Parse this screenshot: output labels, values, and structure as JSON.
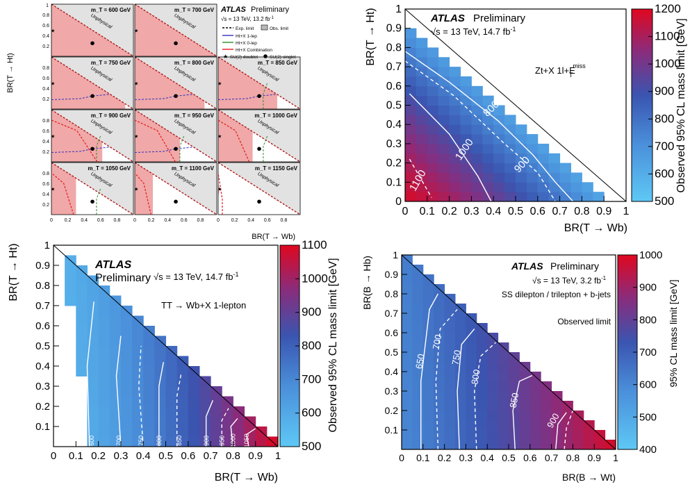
{
  "colors": {
    "atlas_low": "#5ec8f5",
    "atlas_mid": "#2f5db3",
    "atlas_high": "#e0071f",
    "excluded_red": "#f0a8a8",
    "unphysical_gray": "#e2e2e2",
    "combination_red": "#e31a1c",
    "zero_lep_green": "#2e8b2e",
    "one_lep_blue": "#3030c0",
    "exp_dashed": "#000000"
  },
  "chart_data": [
    {
      "id": "panel_a",
      "type": "heatmap",
      "description_type": "grid of exclusion contour mini-plots",
      "label_atlas": "ATLAS",
      "label_prelim": "Preliminary",
      "label_energy": "√s = 13 TeV, 13.2 fb",
      "label_energy_sup": "-1",
      "xlabel": "BR(T → Wb)",
      "ylabel": "BR(T → Ht)",
      "xticks": [
        "0",
        "0.2",
        "0.4",
        "0.6",
        "0.8"
      ],
      "yticks": [
        "0.2",
        "0.4",
        "0.6",
        "0.8"
      ],
      "y_top_tick": "1",
      "unphysical_label": "Unphysical",
      "legend": {
        "exp": "Exp. limit",
        "obs": "Obs. limit",
        "one_lep": "Ht+X 1-lep",
        "zero_lep": "Ht+X 0-lep",
        "combo": "Ht+X Combination",
        "doublet": "SU(2) doublet",
        "singlet": "SU(2) singlet"
      },
      "masses": [
        "m_T = 600 GeV",
        "m_T = 700 GeV",
        "",
        "m_T = 750 GeV",
        "m_T = 800 GeV",
        "m_T = 850 GeV",
        "m_T = 900 GeV",
        "m_T = 950 GeV",
        "m_T = 1000 GeV",
        "m_T = 1050 GeV",
        "m_T = 1100 GeV",
        "m_T = 1150 GeV"
      ],
      "excluded_extent": [
        1.0,
        1.0,
        null,
        0.9,
        0.85,
        0.72,
        0.62,
        0.55,
        0.42,
        0.3,
        0.22,
        0.0
      ],
      "singlet_point": [
        0.5,
        0.25
      ],
      "doublet_point": [
        0.0,
        0.5
      ]
    },
    {
      "id": "panel_b",
      "type": "heatmap",
      "label_atlas": "ATLAS",
      "label_prelim": "Preliminary",
      "label_energy": "√s = 13 TeV, 14.7 fb",
      "label_energy_sup": "-1",
      "channel": "Zt+X 1l+E",
      "channel_sub": "T",
      "channel_sup": "miss",
      "xlabel": "BR(T → Wb)",
      "ylabel": "BR(T → Ht)",
      "zlabel": "Observed 95% CL mass limit [GeV]",
      "xlim": [
        0,
        1
      ],
      "ylim": [
        0,
        1
      ],
      "zlim": [
        500,
        1200
      ],
      "xticks": [
        "0",
        "0.1",
        "0.2",
        "0.3",
        "0.4",
        "0.5",
        "0.6",
        "0.7",
        "0.8",
        "0.9",
        "1"
      ],
      "yticks": [
        "0",
        "0.1",
        "0.2",
        "0.3",
        "0.4",
        "0.5",
        "0.6",
        "0.7",
        "0.8",
        "0.9",
        "1"
      ],
      "zticks": [
        "500",
        "600",
        "700",
        "800",
        "900",
        "1000",
        "1100",
        "1200"
      ],
      "contours": [
        "1100",
        "1000",
        "900",
        "800"
      ],
      "max_mass": 1180,
      "min_mass": 560,
      "grad_exp": 1.0,
      "kx": 0.8,
      "ky": 0.7
    },
    {
      "id": "panel_c",
      "type": "heatmap",
      "label_atlas": "ATLAS",
      "label_prelim": "Preliminary",
      "label_energy": "√s = 13 TeV, 14.7 fb",
      "label_energy_sup": "-1",
      "channel": "TT → Wb+X 1-lepton",
      "xlabel": "BR(T → Wb)",
      "ylabel": "BR(T → Ht)",
      "zlabel": "Observed 95% CL mass limit [GeV]",
      "xlim": [
        0,
        1
      ],
      "ylim": [
        0,
        1
      ],
      "zlim": [
        500,
        1100
      ],
      "xticks": [
        "0",
        "0.1",
        "0.2",
        "0.3",
        "0.4",
        "0.5",
        "0.6",
        "0.7",
        "0.8",
        "0.9",
        "1"
      ],
      "yticks": [
        "0.1",
        "0.2",
        "0.3",
        "0.4",
        "0.5",
        "0.6",
        "0.7",
        "0.8",
        "0.9",
        "1"
      ],
      "zticks": [
        "500",
        "600",
        "700",
        "800",
        "900",
        "1000",
        "1100"
      ],
      "contours": [
        "600",
        "700",
        "750",
        "800",
        "850",
        "900",
        "950",
        "1000",
        "1050"
      ],
      "max_mass": 1100,
      "min_mass": 560,
      "grad_exp": 1.4,
      "kx": 1.0,
      "ky": 0.0
    },
    {
      "id": "panel_d",
      "type": "heatmap",
      "label_atlas": "ATLAS",
      "label_prelim": "Preliminary",
      "label_energy": "√s = 13 TeV, 3.2 fb",
      "label_energy_sup": "-1",
      "channel": "SS dilepton / trilepton + b-jets",
      "subtitle": "Observed limit",
      "xlabel": "BR(B → Wt)",
      "ylabel": "BR(B → Hb)",
      "zlabel": "95% CL mass limit [GeV]",
      "xlim": [
        0,
        1
      ],
      "ylim": [
        0,
        1
      ],
      "zlim": [
        400,
        1000
      ],
      "xticks": [
        "0",
        "0.1",
        "0.2",
        "0.3",
        "0.4",
        "0.5",
        "0.6",
        "0.7",
        "0.8",
        "0.9",
        "1"
      ],
      "yticks": [
        "0.1",
        "0.2",
        "0.3",
        "0.4",
        "0.5",
        "0.6",
        "0.7",
        "0.8",
        "0.9",
        "1"
      ],
      "zticks": [
        "400",
        "500",
        "600",
        "700",
        "800",
        "900",
        "1000"
      ],
      "contours": [
        "650",
        "700",
        "750",
        "800",
        "850",
        "900"
      ],
      "max_mass": 990,
      "min_mass": 600,
      "grad_exp": 1.3,
      "kx": 1.0,
      "ky": 0.0
    }
  ]
}
